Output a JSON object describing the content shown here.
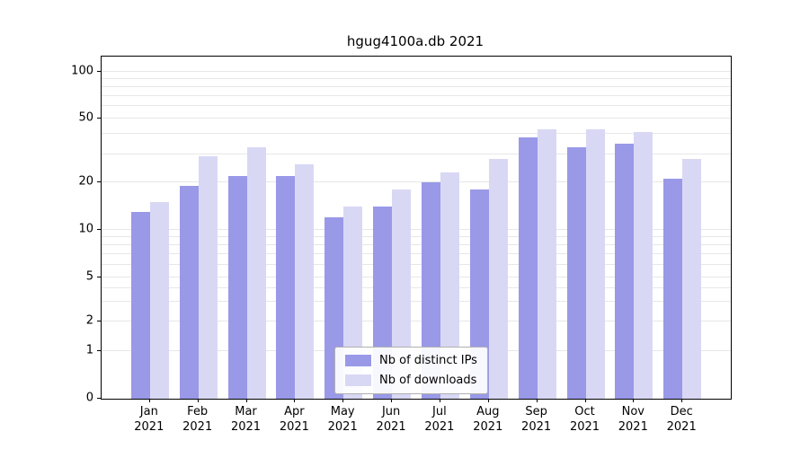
{
  "title": "hgug4100a.db 2021",
  "chart_data": {
    "type": "bar",
    "title": "hgug4100a.db 2021",
    "categories": [
      "Jan 2021",
      "Feb 2021",
      "Mar 2021",
      "Apr 2021",
      "May 2021",
      "Jun 2021",
      "Jul 2021",
      "Aug 2021",
      "Sep 2021",
      "Oct 2021",
      "Nov 2021",
      "Dec 2021"
    ],
    "series": [
      {
        "name": "Nb of distinct IPs",
        "color": "#9999e8",
        "values": [
          13,
          19,
          22,
          22,
          12,
          14,
          20,
          18,
          38,
          33,
          35,
          21
        ]
      },
      {
        "name": "Nb of downloads",
        "color": "#d8d8f5",
        "values": [
          15,
          29,
          33,
          26,
          14,
          18,
          23,
          28,
          43,
          43,
          41,
          28
        ]
      }
    ],
    "yticks": [
      0,
      1,
      2,
      5,
      10,
      20,
      50,
      100
    ],
    "ylim": [
      0,
      120
    ],
    "scale": "symlog",
    "grid": "horizontal",
    "gridline_values": [
      1,
      2,
      3,
      4,
      5,
      6,
      7,
      8,
      9,
      10,
      20,
      30,
      40,
      50,
      60,
      70,
      80,
      90,
      100
    ],
    "legend_position": "lower center",
    "xlabel": "",
    "ylabel": ""
  }
}
